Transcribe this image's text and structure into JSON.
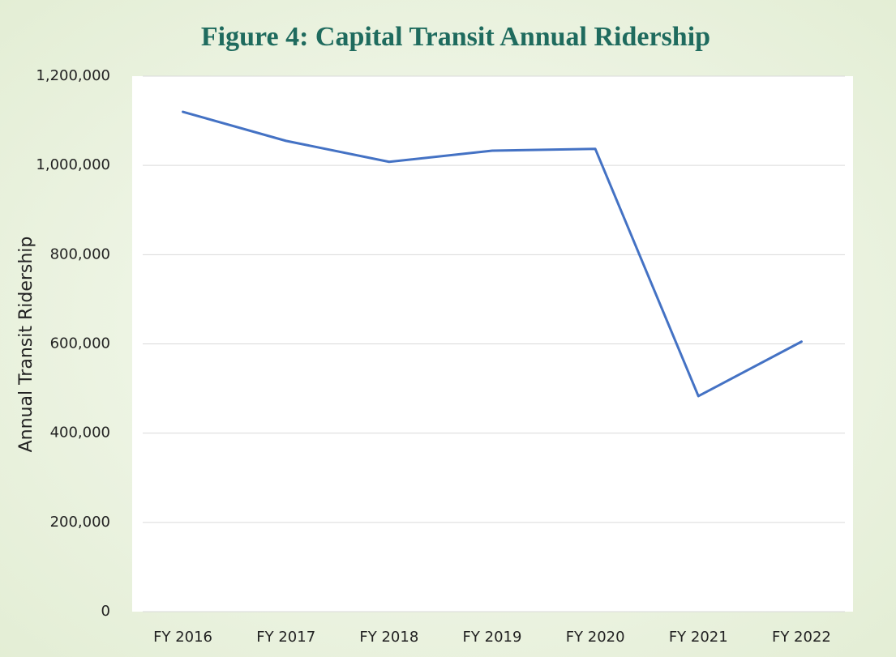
{
  "chart_data": {
    "type": "line",
    "title": "Figure 4: Capital Transit Annual Ridership",
    "y_label": "Annual Transit Ridership",
    "categories": [
      "FY 2016",
      "FY 2017",
      "FY 2018",
      "FY 2019",
      "FY 2020",
      "FY 2021",
      "FY 2022"
    ],
    "series": [
      {
        "name": "Annual Transit Ridership",
        "color": "#4472c4",
        "values": [
          1120000,
          1055000,
          1008000,
          1033000,
          1037000,
          483000,
          605000
        ]
      }
    ],
    "ylim": [
      0,
      1200000
    ],
    "yticks": [
      0,
      {
        "value": 200000,
        "label": "200,000"
      },
      {
        "value": 400000,
        "label": "400,000"
      },
      {
        "value": 600000,
        "label": "600,000"
      },
      {
        "value": 800000,
        "label": "800,000"
      },
      {
        "value": 1000000,
        "label": "1,000,000"
      },
      {
        "value": 1200000,
        "label": "1,200,000"
      }
    ],
    "grid": true
  }
}
